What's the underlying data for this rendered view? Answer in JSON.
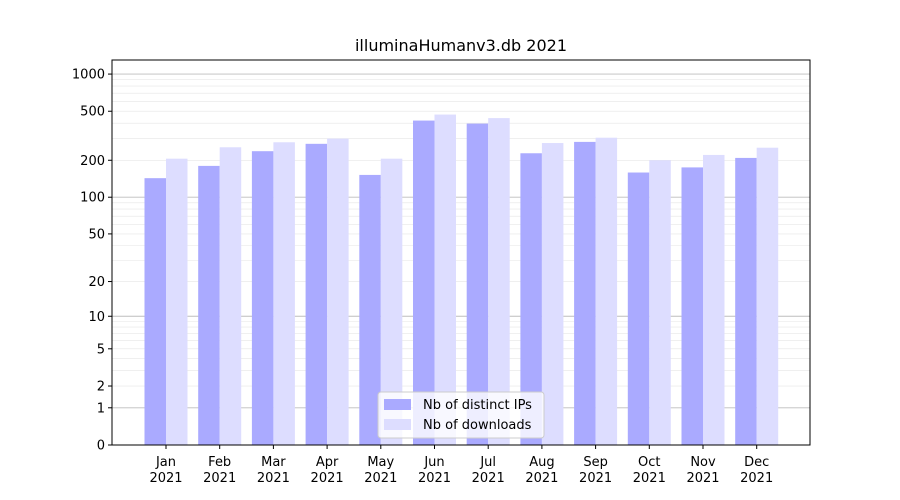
{
  "chart_data": {
    "type": "bar",
    "title": "illuminaHumanv3.db 2021",
    "xlabel": "",
    "ylabel": "",
    "yscale": "log1p",
    "ylim": [
      0,
      1300
    ],
    "yticks": [
      0,
      1,
      2,
      5,
      10,
      20,
      50,
      100,
      200,
      500,
      1000
    ],
    "grid": true,
    "legend_position": "bottom-center",
    "categories": [
      "Jan\n2021",
      "Feb\n2021",
      "Mar\n2021",
      "Apr\n2021",
      "May\n2021",
      "Jun\n2021",
      "Jul\n2021",
      "Aug\n2021",
      "Sep\n2021",
      "Oct\n2021",
      "Nov\n2021",
      "Dec\n2021"
    ],
    "series": [
      {
        "name": "Nb of distinct IPs",
        "color": "#aaaaff",
        "values": [
          143,
          180,
          237,
          272,
          152,
          420,
          397,
          228,
          282,
          159,
          175,
          209
        ]
      },
      {
        "name": "Nb of downloads",
        "color": "#ddddff",
        "values": [
          206,
          255,
          280,
          300,
          206,
          470,
          440,
          276,
          305,
          200,
          221,
          253
        ]
      }
    ]
  }
}
